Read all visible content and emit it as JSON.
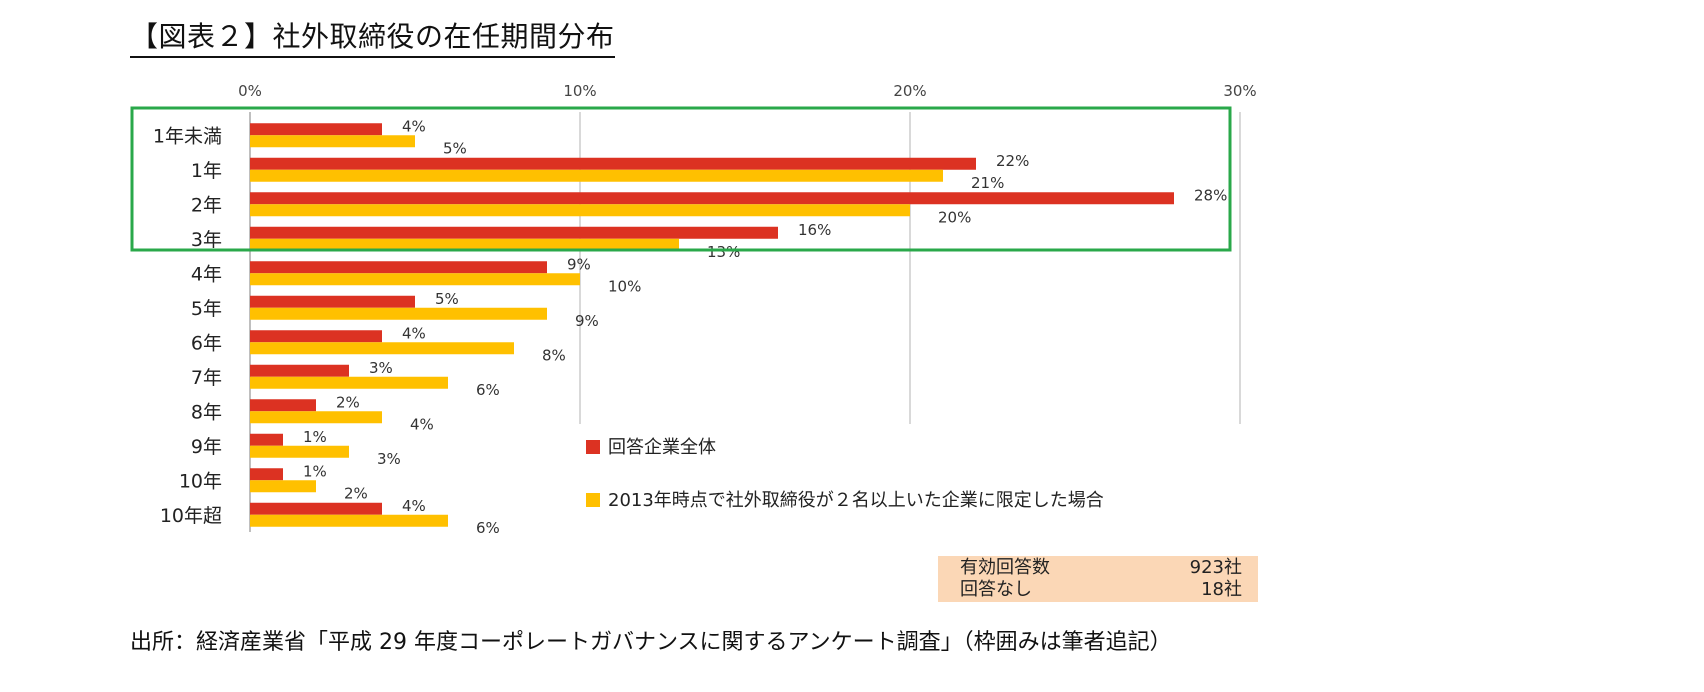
{
  "title": "【図表２】社外取締役の在任期間分布",
  "chart_data": {
    "type": "bar",
    "orientation": "horizontal",
    "categories": [
      "1年未満",
      "1年",
      "2年",
      "3年",
      "4年",
      "5年",
      "6年",
      "7年",
      "8年",
      "9年",
      "10年",
      "10年超"
    ],
    "series": [
      {
        "name": "回答企業全体",
        "color": "#dc3222",
        "values": [
          4,
          22,
          28,
          16,
          9,
          5,
          4,
          3,
          2,
          1,
          1,
          4
        ],
        "labels": [
          "4%",
          "22%",
          "28%",
          "16%",
          "9%",
          "5%",
          "4%",
          "3%",
          "2%",
          "1%",
          "1%",
          "4%"
        ]
      },
      {
        "name": "2013年時点で社外取締役が２名以上いた企業に限定した場合",
        "color": "#ffc000",
        "values": [
          5,
          21,
          20,
          13,
          10,
          9,
          8,
          6,
          4,
          3,
          2,
          6
        ],
        "labels": [
          "5%",
          "21%",
          "20%",
          "13%",
          "10%",
          "9%",
          "8%",
          "6%",
          "4%",
          "3%",
          "2%",
          "6%"
        ]
      }
    ],
    "x_ticks": [
      "0%",
      "10%",
      "20%",
      "30%"
    ],
    "xlim": [
      0,
      30
    ],
    "grid": true,
    "axis_position": "top",
    "legend_placement": "bottom-right",
    "highlight_box_color": "#2aa84a",
    "highlight_categories": [
      "1年未満",
      "1年",
      "2年",
      "3年"
    ]
  },
  "info_box": {
    "rows": [
      {
        "label": "有効回答数",
        "value": "923社"
      },
      {
        "label": "回答なし",
        "value": "18社"
      }
    ]
  },
  "source": "出所：経済産業省「平成 29 年度コーポレートガバナンスに関するアンケート調査」（枠囲みは筆者追記）"
}
